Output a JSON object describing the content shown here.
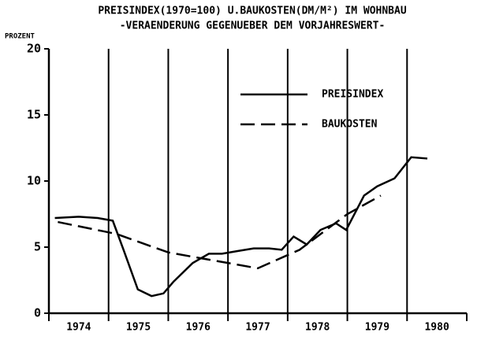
{
  "chart_data": {
    "type": "line",
    "title": "PREISINDEX(1970=100) U.BAUKOSTEN(DM/M²) IM WOHNBAU",
    "subtitle": "-VERAENDERUNG GEGENUEBER DEM VORJAHRESWERT-",
    "y_label": "PROZENT",
    "categories": [
      "1974",
      "1975",
      "1976",
      "1977",
      "1978",
      "1979",
      "1980"
    ],
    "xlim": [
      1974,
      1981
    ],
    "xticks": [
      1974,
      1975,
      1976,
      1977,
      1978,
      1979,
      1980,
      1981
    ],
    "ylim": [
      0,
      20
    ],
    "yticks": [
      0,
      5,
      10,
      15,
      20
    ],
    "series": [
      {
        "name": "PREISINDEX",
        "color": "#000000",
        "dash": "solid",
        "x": [
          1974.1,
          1974.5,
          1974.82,
          1975.07,
          1975.25,
          1975.49,
          1975.72,
          1975.92,
          1976.09,
          1976.41,
          1976.68,
          1976.9,
          1977.16,
          1977.43,
          1977.69,
          1977.9,
          1978.1,
          1978.32,
          1978.55,
          1978.81,
          1978.98,
          1979.28,
          1979.5,
          1979.79,
          1980.07,
          1980.34
        ],
        "values": [
          7.2,
          7.3,
          7.2,
          7.0,
          4.8,
          1.8,
          1.3,
          1.5,
          2.4,
          3.8,
          4.5,
          4.5,
          4.7,
          4.9,
          4.9,
          4.8,
          5.8,
          5.2,
          6.3,
          6.8,
          6.3,
          8.9,
          9.6,
          10.2,
          11.8,
          11.7
        ]
      },
      {
        "name": "BAUKOSTEN",
        "color": "#000000",
        "dash": "dashed",
        "x": [
          1974.15,
          1975.13,
          1976.0,
          1977.0,
          1977.5,
          1978.2,
          1979.0,
          1979.56
        ],
        "values": [
          6.9,
          6.0,
          4.6,
          3.8,
          3.4,
          4.8,
          7.5,
          8.9
        ]
      }
    ]
  }
}
